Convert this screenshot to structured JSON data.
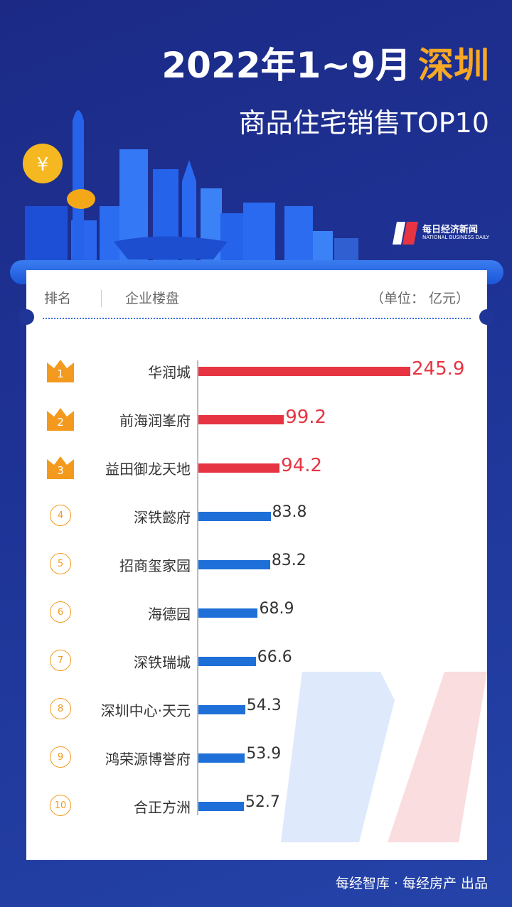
{
  "header": {
    "title_prefix": "2022年1~9月",
    "title_city": "深圳",
    "subtitle": "商品住宅销售TOP10"
  },
  "logo": {
    "name": "每日经济新闻",
    "english": "NATIONAL BUSINESS DAILY"
  },
  "table_header": {
    "rank": "排名",
    "project": "企业楼盘",
    "unit": "（单位： 亿元）"
  },
  "colors": {
    "top3": "#e63442",
    "others": "#1f6fd8",
    "crown": "#f39a1e",
    "city": "#f7a824"
  },
  "chart_data": {
    "type": "bar",
    "orientation": "horizontal",
    "ranks": [
      "1",
      "2",
      "3",
      "4",
      "5",
      "6",
      "7",
      "8",
      "9",
      "10"
    ],
    "categories": [
      "华润城",
      "前海润峯府",
      "益田御龙天地",
      "深铁懿府",
      "招商玺家园",
      "海德园",
      "深铁瑞城",
      "深圳中心·天元",
      "鸿荣源博誉府",
      "合正方洲"
    ],
    "values": [
      245.9,
      99.2,
      94.2,
      83.8,
      83.2,
      68.9,
      66.6,
      54.3,
      53.9,
      52.7
    ],
    "value_labels": [
      "245.9",
      "99.2",
      "94.2",
      "83.8",
      "83.2",
      "68.9",
      "66.6",
      "54.3",
      "53.9",
      "52.7"
    ],
    "unit": "亿元"
  },
  "footer": "每经智库 · 每经房产 出品"
}
